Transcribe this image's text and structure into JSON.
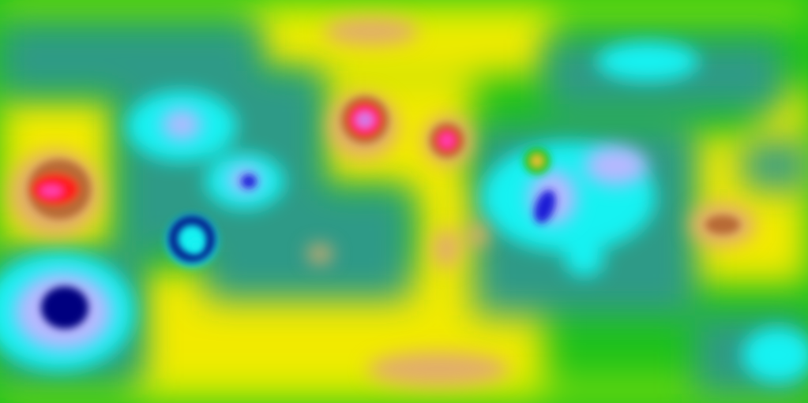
{
  "map": {
    "type": "global-equirectangular-anomaly-map",
    "projection": "equirectangular",
    "labels_shown": false,
    "palette": {
      "deep_blue": "#00007f",
      "blue": "#1f1fd6",
      "lavender": "#b7b7ff",
      "cyan": "#19f2f2",
      "teal": "#2f9a87",
      "green": "#1fc21a",
      "yellow_green": "#b8f000",
      "yellow": "#f2ea00",
      "tan": "#e2ad6c",
      "brown": "#b86a35",
      "red": "#ff1a1a",
      "magenta": "#ff3fb0",
      "violet": "#cc7dea"
    }
  }
}
